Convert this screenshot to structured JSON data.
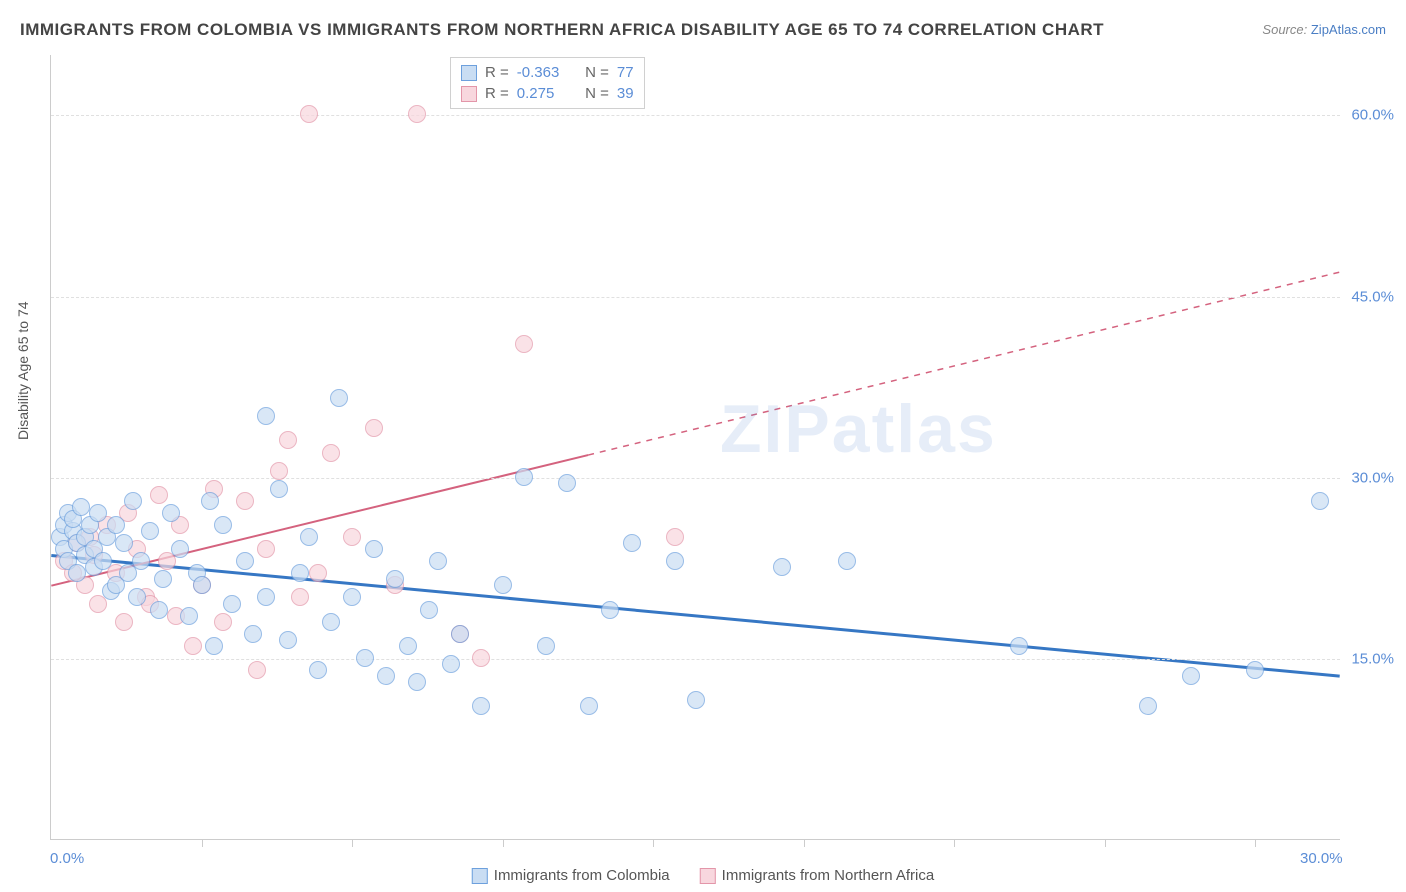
{
  "title": "IMMIGRANTS FROM COLOMBIA VS IMMIGRANTS FROM NORTHERN AFRICA DISABILITY AGE 65 TO 74 CORRELATION CHART",
  "source_label": "Source:",
  "source_value": "ZipAtlas.com",
  "y_axis_label": "Disability Age 65 to 74",
  "watermark": "ZIPatlas",
  "chart": {
    "type": "scatter",
    "xlim": [
      0,
      30
    ],
    "ylim": [
      0,
      65
    ],
    "x_ticks_labeled": [
      {
        "v": 0,
        "l": "0.0%"
      },
      {
        "v": 30,
        "l": "30.0%"
      }
    ],
    "x_ticks_minor": [
      3.5,
      7,
      10.5,
      14,
      17.5,
      21,
      24.5,
      28
    ],
    "y_gridlines": [
      {
        "v": 15,
        "l": "15.0%"
      },
      {
        "v": 30,
        "l": "30.0%"
      },
      {
        "v": 45,
        "l": "45.0%"
      },
      {
        "v": 60,
        "l": "60.0%"
      }
    ],
    "background_color": "#ffffff",
    "grid_color": "#e0e0e0",
    "series": [
      {
        "name": "Immigrants from Colombia",
        "fill": "#c9ddf3",
        "stroke": "#6da0dd",
        "fill_opacity": 0.7,
        "marker_radius": 9,
        "R": "-0.363",
        "N": "77",
        "trend": {
          "x1": 0,
          "y1": 23.5,
          "x2": 30,
          "y2": 13.5,
          "solid_to_x": 30,
          "color": "#3677c4",
          "width": 3
        },
        "points": [
          [
            0.2,
            25
          ],
          [
            0.3,
            26
          ],
          [
            0.3,
            24
          ],
          [
            0.4,
            27
          ],
          [
            0.4,
            23
          ],
          [
            0.5,
            25.5
          ],
          [
            0.5,
            26.5
          ],
          [
            0.6,
            24.5
          ],
          [
            0.6,
            22
          ],
          [
            0.7,
            27.5
          ],
          [
            0.8,
            25
          ],
          [
            0.8,
            23.5
          ],
          [
            0.9,
            26
          ],
          [
            1.0,
            24
          ],
          [
            1.0,
            22.5
          ],
          [
            1.1,
            27
          ],
          [
            1.2,
            23
          ],
          [
            1.3,
            25
          ],
          [
            1.4,
            20.5
          ],
          [
            1.5,
            26
          ],
          [
            1.5,
            21
          ],
          [
            1.7,
            24.5
          ],
          [
            1.8,
            22
          ],
          [
            1.9,
            28
          ],
          [
            2.0,
            20
          ],
          [
            2.1,
            23
          ],
          [
            2.3,
            25.5
          ],
          [
            2.5,
            19
          ],
          [
            2.6,
            21.5
          ],
          [
            2.8,
            27
          ],
          [
            3.0,
            24
          ],
          [
            3.2,
            18.5
          ],
          [
            3.4,
            22
          ],
          [
            3.5,
            21
          ],
          [
            3.7,
            28
          ],
          [
            3.8,
            16
          ],
          [
            4.0,
            26
          ],
          [
            4.2,
            19.5
          ],
          [
            4.5,
            23
          ],
          [
            4.7,
            17
          ],
          [
            5.0,
            35
          ],
          [
            5.0,
            20
          ],
          [
            5.3,
            29
          ],
          [
            5.5,
            16.5
          ],
          [
            5.8,
            22
          ],
          [
            6.0,
            25
          ],
          [
            6.2,
            14
          ],
          [
            6.5,
            18
          ],
          [
            6.7,
            36.5
          ],
          [
            7.0,
            20
          ],
          [
            7.3,
            15
          ],
          [
            7.5,
            24
          ],
          [
            7.8,
            13.5
          ],
          [
            8.0,
            21.5
          ],
          [
            8.3,
            16
          ],
          [
            8.5,
            13
          ],
          [
            8.8,
            19
          ],
          [
            9.0,
            23
          ],
          [
            9.3,
            14.5
          ],
          [
            9.5,
            17
          ],
          [
            10.0,
            11
          ],
          [
            10.5,
            21
          ],
          [
            11.0,
            30
          ],
          [
            11.5,
            16
          ],
          [
            12.0,
            29.5
          ],
          [
            12.5,
            11
          ],
          [
            13.0,
            19
          ],
          [
            13.5,
            24.5
          ],
          [
            14.5,
            23
          ],
          [
            15.0,
            11.5
          ],
          [
            17.0,
            22.5
          ],
          [
            18.5,
            23
          ],
          [
            22.5,
            16
          ],
          [
            25.5,
            11
          ],
          [
            26.5,
            13.5
          ],
          [
            28.0,
            14
          ],
          [
            29.5,
            28
          ]
        ]
      },
      {
        "name": "Immigrants from Northern Africa",
        "fill": "#f8d7de",
        "stroke": "#e396a9",
        "fill_opacity": 0.7,
        "marker_radius": 9,
        "R": "0.275",
        "N": "39",
        "trend": {
          "x1": 0,
          "y1": 21,
          "x2": 30,
          "y2": 47,
          "solid_to_x": 12.5,
          "color": "#d4627e",
          "width": 2
        },
        "points": [
          [
            0.3,
            23
          ],
          [
            0.5,
            22
          ],
          [
            0.6,
            24.5
          ],
          [
            0.8,
            21
          ],
          [
            0.9,
            25
          ],
          [
            1.0,
            23.5
          ],
          [
            1.1,
            19.5
          ],
          [
            1.3,
            26
          ],
          [
            1.5,
            22
          ],
          [
            1.7,
            18
          ],
          [
            1.8,
            27
          ],
          [
            2.0,
            24
          ],
          [
            2.2,
            20
          ],
          [
            2.3,
            19.5
          ],
          [
            2.5,
            28.5
          ],
          [
            2.7,
            23
          ],
          [
            2.9,
            18.5
          ],
          [
            3.0,
            26
          ],
          [
            3.3,
            16
          ],
          [
            3.5,
            21
          ],
          [
            3.8,
            29
          ],
          [
            4.0,
            18
          ],
          [
            4.5,
            28
          ],
          [
            4.8,
            14
          ],
          [
            5.0,
            24
          ],
          [
            5.3,
            30.5
          ],
          [
            5.5,
            33
          ],
          [
            5.8,
            20
          ],
          [
            6.0,
            60
          ],
          [
            6.2,
            22
          ],
          [
            6.5,
            32
          ],
          [
            7.0,
            25
          ],
          [
            7.5,
            34
          ],
          [
            8.0,
            21
          ],
          [
            8.5,
            60
          ],
          [
            9.5,
            17
          ],
          [
            10.0,
            15
          ],
          [
            11.0,
            41
          ],
          [
            14.5,
            25
          ]
        ]
      }
    ]
  }
}
